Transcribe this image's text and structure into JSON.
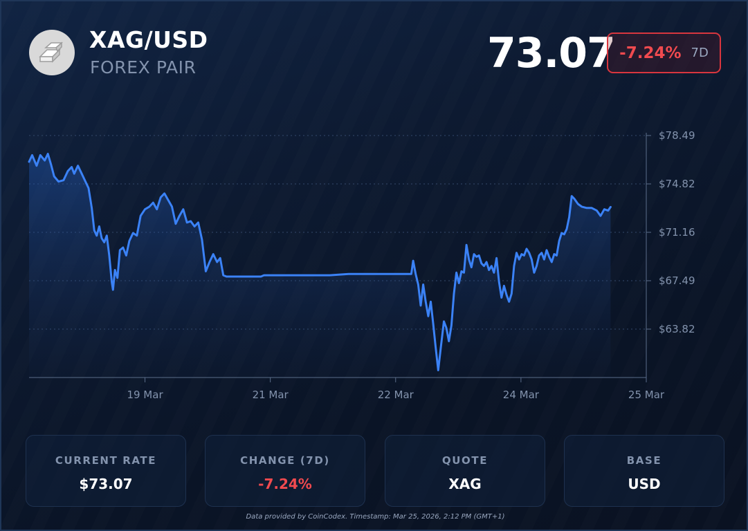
{
  "header": {
    "pair": "XAG/USD",
    "subtitle": "FOREX PAIR",
    "price": "73.07",
    "change_pct": "-7.24%",
    "change_period": "7D",
    "logo_icon": "silver-bars-icon"
  },
  "colors": {
    "line": "#3b82f6",
    "negative": "#f04a4f",
    "muted": "#8393ad",
    "background": "#0b1220"
  },
  "chart_data": {
    "type": "area",
    "xlabel": "",
    "ylabel": "",
    "ylim": [
      60.15,
      78.49
    ],
    "yticks": [
      "$78.49",
      "$74.82",
      "$71.16",
      "$67.49",
      "$63.82"
    ],
    "xticks": [
      {
        "day": 1.85,
        "label": "19 Mar"
      },
      {
        "day": 3.85,
        "label": "21 Mar"
      },
      {
        "day": 5.85,
        "label": "22 Mar"
      },
      {
        "day": 7.85,
        "label": "24 Mar"
      },
      {
        "day": 9.85,
        "label": "25 Mar"
      }
    ],
    "grid": true,
    "series": [
      {
        "points": [
          [
            0.0,
            76.5
          ],
          [
            0.05,
            77.0
          ],
          [
            0.12,
            76.2
          ],
          [
            0.18,
            77.0
          ],
          [
            0.25,
            76.6
          ],
          [
            0.3,
            77.1
          ],
          [
            0.35,
            76.3
          ],
          [
            0.4,
            75.4
          ],
          [
            0.47,
            75.0
          ],
          [
            0.55,
            75.1
          ],
          [
            0.62,
            75.8
          ],
          [
            0.68,
            76.1
          ],
          [
            0.72,
            75.6
          ],
          [
            0.78,
            76.2
          ],
          [
            0.84,
            75.6
          ],
          [
            0.9,
            75.0
          ],
          [
            0.95,
            74.5
          ],
          [
            1.0,
            73.0
          ],
          [
            1.04,
            71.3
          ],
          [
            1.08,
            70.9
          ],
          [
            1.12,
            71.6
          ],
          [
            1.16,
            70.7
          ],
          [
            1.2,
            70.4
          ],
          [
            1.24,
            70.9
          ],
          [
            1.28,
            69.4
          ],
          [
            1.32,
            67.4
          ],
          [
            1.34,
            66.8
          ],
          [
            1.37,
            68.3
          ],
          [
            1.41,
            67.7
          ],
          [
            1.45,
            69.8
          ],
          [
            1.5,
            70.0
          ],
          [
            1.55,
            69.4
          ],
          [
            1.6,
            70.5
          ],
          [
            1.66,
            71.1
          ],
          [
            1.72,
            70.9
          ],
          [
            1.78,
            72.4
          ],
          [
            1.85,
            72.9
          ],
          [
            1.92,
            73.1
          ],
          [
            1.98,
            73.4
          ],
          [
            2.04,
            72.9
          ],
          [
            2.1,
            73.8
          ],
          [
            2.16,
            74.1
          ],
          [
            2.22,
            73.6
          ],
          [
            2.28,
            73.1
          ],
          [
            2.34,
            71.8
          ],
          [
            2.4,
            72.4
          ],
          [
            2.46,
            72.9
          ],
          [
            2.52,
            71.9
          ],
          [
            2.58,
            72.0
          ],
          [
            2.64,
            71.6
          ],
          [
            2.7,
            71.9
          ],
          [
            2.76,
            70.6
          ],
          [
            2.82,
            68.2
          ],
          [
            2.88,
            68.9
          ],
          [
            2.94,
            69.5
          ],
          [
            3.0,
            68.9
          ],
          [
            3.05,
            69.2
          ],
          [
            3.1,
            67.9
          ],
          [
            3.15,
            67.8
          ],
          [
            3.3,
            67.8
          ],
          [
            3.7,
            67.8
          ],
          [
            3.75,
            67.9
          ],
          [
            4.2,
            67.9
          ],
          [
            4.8,
            67.9
          ],
          [
            5.1,
            68.0
          ],
          [
            5.5,
            68.0
          ],
          [
            6.1,
            68.0
          ],
          [
            6.13,
            69.0
          ],
          [
            6.17,
            68.0
          ],
          [
            6.21,
            67.2
          ],
          [
            6.25,
            65.6
          ],
          [
            6.29,
            67.2
          ],
          [
            6.33,
            65.9
          ],
          [
            6.37,
            64.8
          ],
          [
            6.41,
            65.9
          ],
          [
            6.45,
            64.2
          ],
          [
            6.49,
            62.4
          ],
          [
            6.53,
            60.7
          ],
          [
            6.57,
            62.4
          ],
          [
            6.62,
            64.4
          ],
          [
            6.66,
            63.9
          ],
          [
            6.7,
            62.9
          ],
          [
            6.74,
            64.1
          ],
          [
            6.78,
            66.5
          ],
          [
            6.82,
            68.1
          ],
          [
            6.86,
            67.3
          ],
          [
            6.9,
            68.2
          ],
          [
            6.94,
            68.1
          ],
          [
            6.98,
            70.2
          ],
          [
            7.02,
            69.1
          ],
          [
            7.06,
            68.5
          ],
          [
            7.1,
            69.5
          ],
          [
            7.14,
            69.3
          ],
          [
            7.18,
            69.4
          ],
          [
            7.22,
            68.8
          ],
          [
            7.26,
            68.6
          ],
          [
            7.3,
            68.9
          ],
          [
            7.34,
            68.3
          ],
          [
            7.38,
            68.6
          ],
          [
            7.42,
            68.1
          ],
          [
            7.46,
            69.2
          ],
          [
            7.5,
            67.4
          ],
          [
            7.54,
            66.2
          ],
          [
            7.58,
            67.1
          ],
          [
            7.62,
            66.4
          ],
          [
            7.66,
            65.9
          ],
          [
            7.7,
            66.5
          ],
          [
            7.74,
            68.6
          ],
          [
            7.78,
            69.6
          ],
          [
            7.82,
            69.1
          ],
          [
            7.86,
            69.5
          ],
          [
            7.9,
            69.4
          ],
          [
            7.94,
            69.9
          ],
          [
            7.98,
            69.6
          ],
          [
            8.02,
            69.1
          ],
          [
            8.06,
            68.1
          ],
          [
            8.1,
            68.6
          ],
          [
            8.14,
            69.4
          ],
          [
            8.18,
            69.6
          ],
          [
            8.22,
            69.1
          ],
          [
            8.26,
            69.8
          ],
          [
            8.3,
            69.3
          ],
          [
            8.34,
            68.9
          ],
          [
            8.38,
            69.5
          ],
          [
            8.42,
            69.4
          ],
          [
            8.46,
            70.5
          ],
          [
            8.5,
            71.1
          ],
          [
            8.54,
            71.0
          ],
          [
            8.58,
            71.4
          ],
          [
            8.62,
            72.3
          ],
          [
            8.66,
            73.9
          ],
          [
            8.7,
            73.7
          ],
          [
            8.76,
            73.3
          ],
          [
            8.82,
            73.1
          ],
          [
            8.9,
            73.0
          ],
          [
            8.98,
            73.0
          ],
          [
            9.06,
            72.8
          ],
          [
            9.12,
            72.4
          ],
          [
            9.18,
            72.9
          ],
          [
            9.24,
            72.8
          ],
          [
            9.28,
            73.07
          ]
        ]
      }
    ]
  },
  "stats": [
    {
      "label": "CURRENT RATE",
      "value": "$73.07",
      "tone": "normal"
    },
    {
      "label": "CHANGE (7D)",
      "value": "-7.24%",
      "tone": "negative"
    },
    {
      "label": "QUOTE",
      "value": "XAG",
      "tone": "normal"
    },
    {
      "label": "BASE",
      "value": "USD",
      "tone": "normal"
    }
  ],
  "footnote": "Data provided by CoinCodex. Timestamp: Mar 25, 2026, 2:12 PM (GMT+1)"
}
